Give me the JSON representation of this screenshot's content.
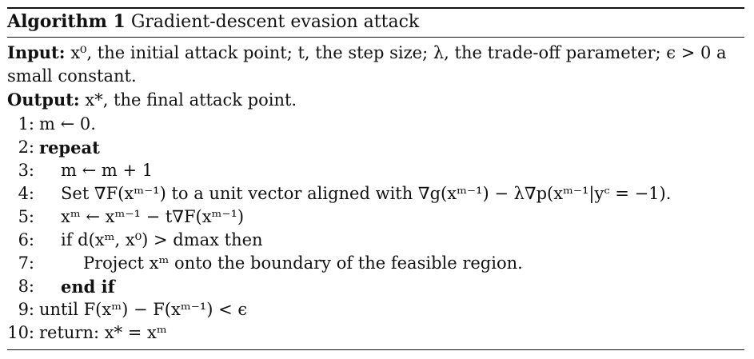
{
  "caption": {
    "label": "Algorithm 1",
    "title": "Gradient-descent evasion attack"
  },
  "input": {
    "label": "Input:",
    "text_line1": "x⁰, the initial attack point; t, the step size; λ, the trade-off parameter; ϵ > 0 a",
    "text_line2": "small constant."
  },
  "output": {
    "label": "Output:",
    "text": "x*, the final attack point."
  },
  "steps": [
    {
      "num": "1:",
      "text": "m ← 0."
    },
    {
      "num": "2:",
      "text": "repeat"
    },
    {
      "num": "3:",
      "text": "m ← m + 1"
    },
    {
      "num": "4:",
      "text": "Set ∇F(xᵐ⁻¹) to a unit vector aligned with ∇g(xᵐ⁻¹) − λ∇p(xᵐ⁻¹|yᶜ = −1)."
    },
    {
      "num": "5:",
      "text": "xᵐ ← xᵐ⁻¹ − t∇F(xᵐ⁻¹)"
    },
    {
      "num": "6:",
      "text": "if d(xᵐ, x⁰) > dmax then"
    },
    {
      "num": "7:",
      "text": "Project xᵐ onto the boundary of the feasible region."
    },
    {
      "num": "8:",
      "text": "end if"
    },
    {
      "num": "9:",
      "text": "until F(xᵐ) − F(xᵐ⁻¹) < ϵ"
    },
    {
      "num": "10:",
      "text": "return: x* = xᵐ"
    }
  ]
}
